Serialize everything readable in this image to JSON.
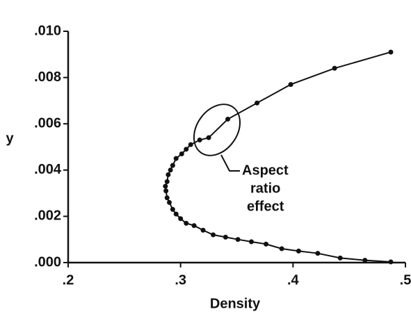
{
  "chart_data": {
    "type": "line",
    "xlabel": "Density",
    "ylabel": "y",
    "annotation": [
      "Aspect",
      "ratio",
      "effect"
    ],
    "color": "#111111",
    "x": [
      0.487,
      0.437,
      0.398,
      0.368,
      0.342,
      0.325,
      0.317,
      0.309,
      0.305,
      0.301,
      0.296,
      0.293,
      0.291,
      0.289,
      0.288,
      0.2865,
      0.287,
      0.288,
      0.29,
      0.293,
      0.296,
      0.3,
      0.305,
      0.312,
      0.32,
      0.329,
      0.34,
      0.351,
      0.363,
      0.376,
      0.39,
      0.405,
      0.422,
      0.442,
      0.464,
      0.487
    ],
    "values": [
      0.0091,
      0.0084,
      0.0077,
      0.0069,
      0.0062,
      0.0054,
      0.0053,
      0.0051,
      0.0049,
      0.0047,
      0.0045,
      0.0042,
      0.004,
      0.0038,
      0.0035,
      0.0033,
      0.0031,
      0.0028,
      0.0026,
      0.0023,
      0.0021,
      0.0019,
      0.0017,
      0.0016,
      0.0014,
      0.0012,
      0.0011,
      0.001,
      0.0009,
      0.0008,
      0.0006,
      0.0005,
      0.0004,
      0.0002,
      0.0001,
      3e-05
    ],
    "xlim": [
      0.2,
      0.5
    ],
    "xticks": [
      {
        "value": 0.2,
        "label": ".2"
      },
      {
        "value": 0.3,
        "label": ".3"
      },
      {
        "value": 0.4,
        "label": ".4"
      },
      {
        "value": 0.5,
        "label": ".5"
      }
    ],
    "ylim": [
      0,
      0.01
    ],
    "yticks": [
      {
        "value": 0,
        "label": ".000"
      },
      {
        "value": 0.002,
        "label": ".002"
      },
      {
        "value": 0.004,
        "label": ".004"
      },
      {
        "value": 0.006,
        "label": ".006"
      },
      {
        "value": 0.008,
        "label": ".008"
      },
      {
        "value": 0.01,
        "label": ".010"
      }
    ],
    "grid": false
  }
}
